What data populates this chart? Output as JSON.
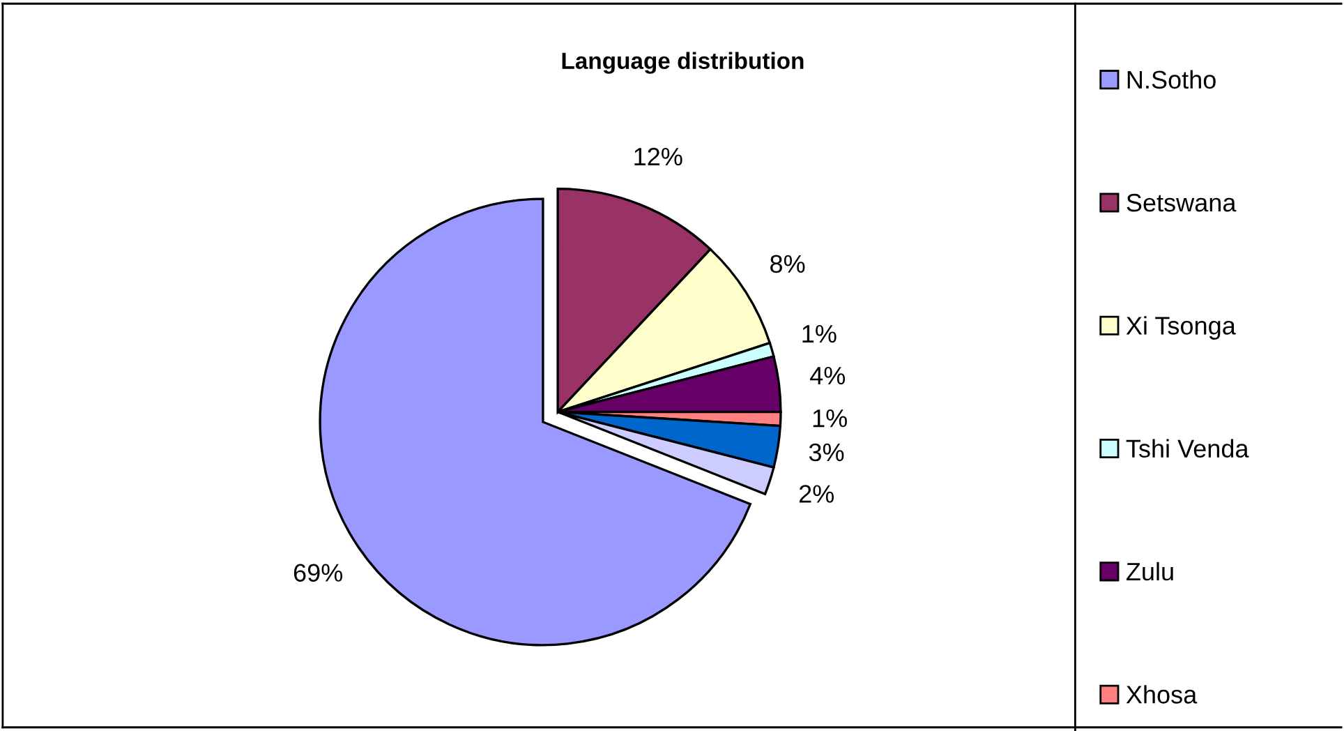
{
  "chart_data": {
    "type": "pie",
    "title": "Language distribution",
    "categories": [
      "N.Sotho",
      "Setswana",
      "Xi Tsonga",
      "Tshi Venda",
      "Zulu",
      "Xhosa",
      null,
      null
    ],
    "values": [
      69,
      12,
      8,
      1,
      4,
      1,
      3,
      2
    ],
    "colors": [
      "#9999ff",
      "#993366",
      "#ffffcc",
      "#ccffff",
      "#660066",
      "#ff8080",
      "#0066cc",
      "#ccccff"
    ],
    "value_labels": [
      "69%",
      "12%",
      "8%",
      "1%",
      "4%",
      "1%",
      "3%",
      "2%"
    ],
    "legend": "right"
  }
}
